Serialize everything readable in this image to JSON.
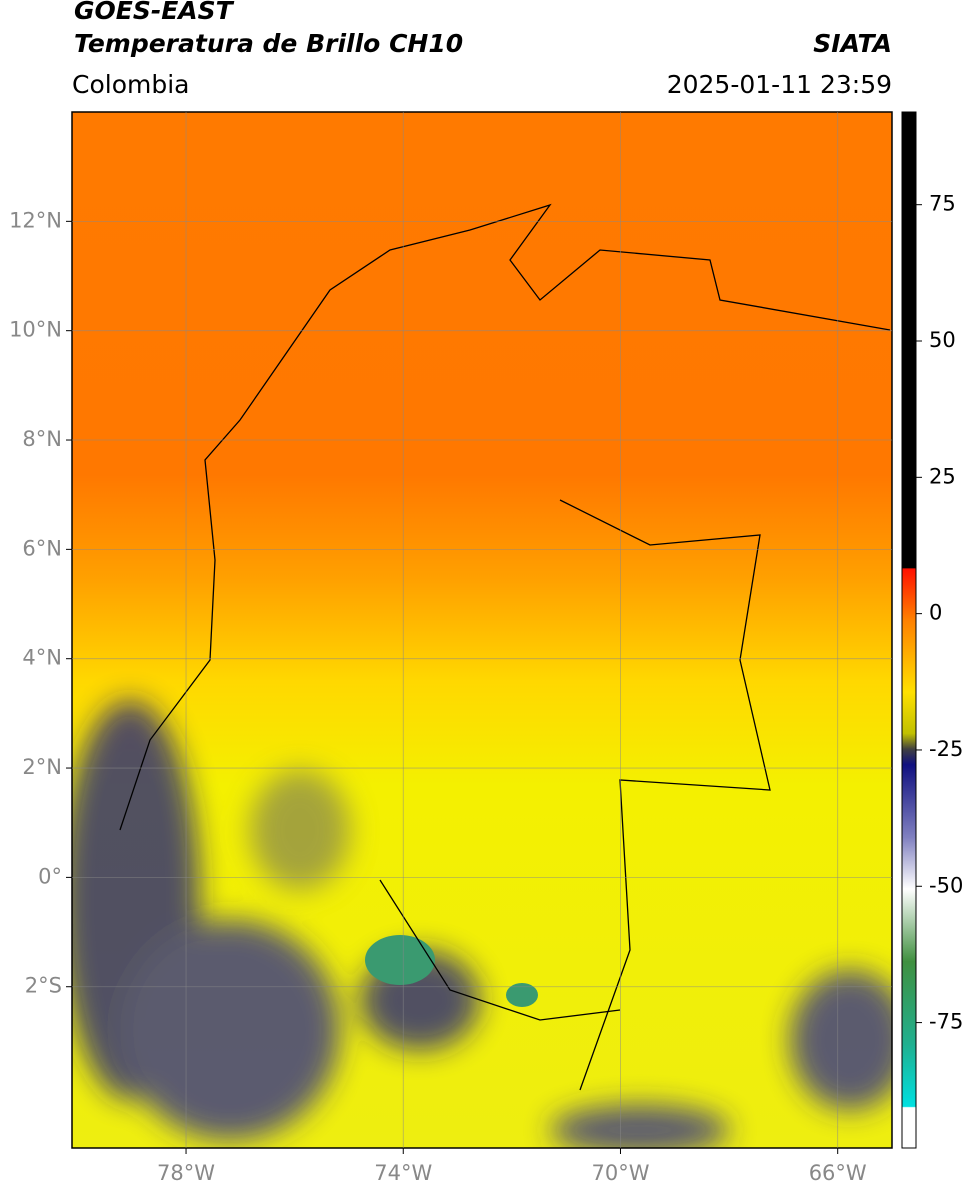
{
  "header": {
    "title": "GOES-EAST",
    "subtitle": "Temperatura de Brillo CH10",
    "source": "SIATA",
    "region": "Colombia",
    "datetime": "2025-01-11 23:59"
  },
  "map": {
    "xlim": [
      -80.1,
      -65
    ],
    "ylim": [
      -4.95,
      14
    ],
    "xticks": [
      {
        "value": -78,
        "label": "78°W"
      },
      {
        "value": -74,
        "label": "74°W"
      },
      {
        "value": -70,
        "label": "70°W"
      },
      {
        "value": -66,
        "label": "66°W"
      }
    ],
    "yticks": [
      {
        "value": 12,
        "label": "12°N"
      },
      {
        "value": 10,
        "label": "10°N"
      },
      {
        "value": 8,
        "label": "8°N"
      },
      {
        "value": 6,
        "label": "6°N"
      },
      {
        "value": 4,
        "label": "4°N"
      },
      {
        "value": 2,
        "label": "2°N"
      },
      {
        "value": 0,
        "label": "0°"
      },
      {
        "value": -2,
        "label": "2°S"
      }
    ],
    "grid": true
  },
  "colorbar": {
    "lim": [
      -98,
      92
    ],
    "ticks": [
      75,
      50,
      25,
      0,
      -25,
      -50,
      -75
    ]
  }
}
